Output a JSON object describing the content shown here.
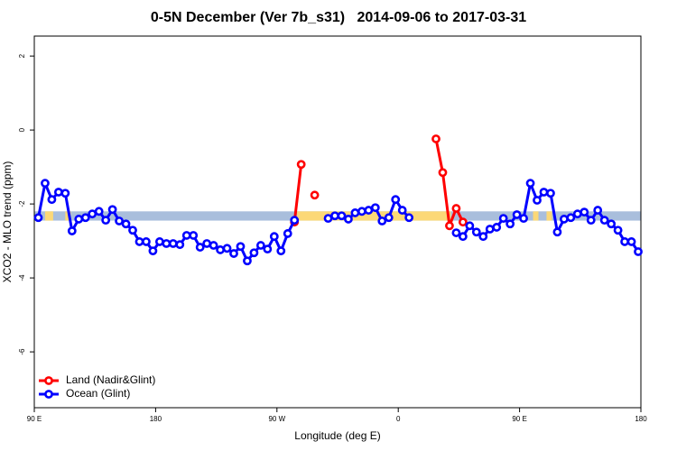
{
  "chart_data": {
    "type": "line",
    "title": "0-5N December (Ver 7b_s31)   2014-09-06 to 2017-03-31",
    "x_label": "Longitude (deg E)",
    "y_label": "XCO2 - MLO trend (ppm)",
    "xlim": [
      90,
      540
    ],
    "ylim": [
      -7.51,
      2.54
    ],
    "xticks": [
      {
        "value": 90,
        "label": "90 E"
      },
      {
        "value": 180,
        "label": "180"
      },
      {
        "value": 270,
        "label": "90 W"
      },
      {
        "value": 360,
        "label": "0"
      },
      {
        "value": 450,
        "label": "90 E"
      },
      {
        "value": 540,
        "label": "180"
      }
    ],
    "yticks": [
      2,
      0,
      -2,
      -4,
      -6
    ],
    "legend": "bottom-left",
    "band": {
      "range": [
        -2.45,
        -2.2
      ],
      "color": "#a9bedc",
      "highlight_color": "#fcd877",
      "highlights": [
        [
          285,
          399
        ],
        [
          98,
          104
        ],
        [
          113,
          117
        ],
        [
          460,
          464
        ],
        [
          470,
          474
        ]
      ]
    },
    "series": [
      {
        "name": "Land (Nadir&Glint)",
        "color": "#ff0000",
        "x": [
          283,
          288,
          293,
          298,
          303,
          388,
          393,
          398,
          403,
          408
        ],
        "values": [
          -2.49,
          -0.93,
          null,
          -1.76,
          null,
          -0.24,
          -1.15,
          -2.59,
          -2.12,
          -2.49
        ]
      },
      {
        "name": "Ocean (Glint)",
        "color": "#0000ff",
        "x": [
          93,
          98,
          103,
          108,
          113,
          118,
          123,
          128,
          133,
          138,
          143,
          148,
          153,
          158,
          163,
          168,
          173,
          178,
          183,
          188,
          193,
          198,
          203,
          208,
          213,
          218,
          223,
          228,
          233,
          238,
          243,
          248,
          253,
          258,
          263,
          268,
          273,
          278,
          283,
          293,
          308,
          313,
          318,
          323,
          328,
          333,
          338,
          343,
          348,
          353,
          358,
          363,
          368,
          388,
          403,
          408,
          413,
          418,
          423,
          428,
          433,
          438,
          443,
          448,
          453,
          458,
          463,
          468,
          473,
          478,
          483,
          488,
          493,
          498,
          503,
          508,
          513,
          518,
          523,
          528,
          533,
          538
        ],
        "values": [
          -2.37,
          -1.44,
          -1.88,
          -1.68,
          -1.71,
          -2.73,
          -2.41,
          -2.37,
          -2.27,
          -2.2,
          -2.44,
          -2.15,
          -2.46,
          -2.54,
          -2.71,
          -3.02,
          -3.02,
          -3.27,
          -3.02,
          -3.07,
          -3.07,
          -3.1,
          -2.85,
          -2.85,
          -3.17,
          -3.07,
          -3.12,
          -3.24,
          -3.2,
          -3.34,
          -3.15,
          -3.54,
          -3.32,
          -3.12,
          -3.22,
          -2.88,
          -3.27,
          -2.8,
          -2.44,
          null,
          -2.39,
          -2.32,
          -2.32,
          -2.41,
          -2.24,
          -2.2,
          -2.17,
          -2.1,
          -2.46,
          -2.37,
          -1.88,
          -2.17,
          -2.37,
          null,
          -2.78,
          -2.88,
          -2.59,
          -2.76,
          -2.88,
          -2.68,
          -2.63,
          -2.39,
          -2.54,
          -2.29,
          -2.39,
          -1.44,
          -1.9,
          -1.68,
          -1.71,
          -2.76,
          -2.41,
          -2.37,
          -2.27,
          -2.22,
          -2.44,
          -2.17,
          -2.44,
          -2.54,
          -2.71,
          -3.02,
          -3.02,
          -3.29
        ]
      }
    ]
  }
}
